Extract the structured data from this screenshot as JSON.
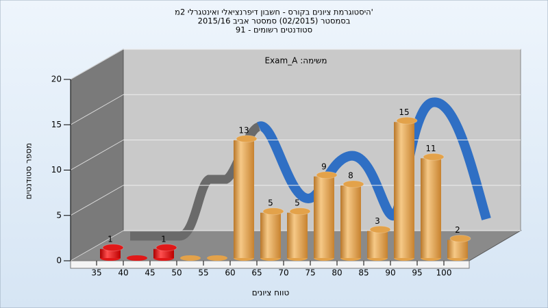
{
  "chart_data": {
    "type": "bar",
    "title_lines": [
      "היסטוגרמת ציונים בקורס - חשבון דיפרנציאלי ואינטגרלי 2מ'",
      "בסמסטר (02/2015) סמסטר אביב 2015/16",
      "סטודנטים רשומים - 91"
    ],
    "annotation": "משימה: Exam_A",
    "xlabel": "טווח ציונים",
    "ylabel": "מספר סטודנטים",
    "categories": [
      "35",
      "40",
      "45",
      "50",
      "55",
      "60",
      "65",
      "70",
      "75",
      "80",
      "85",
      "90",
      "95",
      "100"
    ],
    "values": [
      1,
      0,
      1,
      0,
      0,
      13,
      5,
      5,
      9,
      8,
      3,
      15,
      11,
      2
    ],
    "colors": [
      "#e01818",
      "#e01818",
      "#e01818",
      "#e3a24a",
      "#e3a24a",
      "#e3a24a",
      "#e3a24a",
      "#e3a24a",
      "#e3a24a",
      "#e3a24a",
      "#e3a24a",
      "#e3a24a",
      "#e3a24a",
      "#e3a24a"
    ],
    "ylim": [
      0,
      20
    ],
    "yticks": [
      0,
      5,
      10,
      15,
      20
    ],
    "grid": true
  }
}
